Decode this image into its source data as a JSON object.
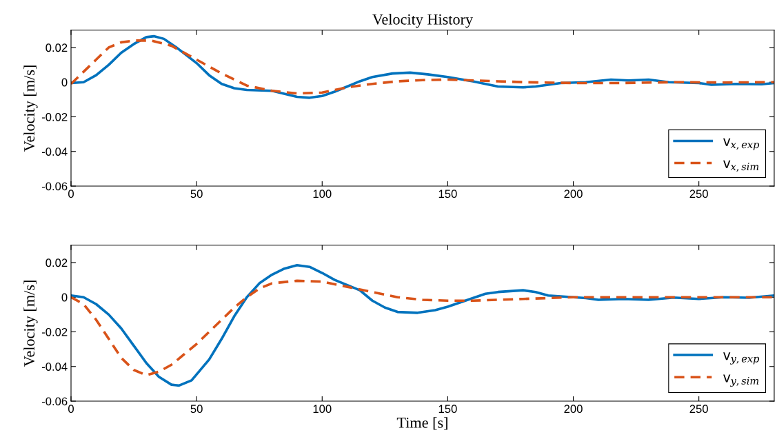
{
  "chart_data": [
    {
      "type": "line",
      "title": "Velocity History",
      "ylabel": "Velocity [m/s]",
      "xlim": [
        0,
        280
      ],
      "xticks": [
        0,
        50,
        100,
        150,
        200,
        250
      ],
      "ylim": [
        -0.06,
        0.03
      ],
      "yticks": [
        -0.06,
        -0.04,
        -0.02,
        0,
        0.02
      ],
      "grid": false,
      "legend": "lower right",
      "marker": "none",
      "series": [
        {
          "name": "v$_{x,exp}$",
          "color": "#0072bd",
          "line_style": "solid",
          "x": [
            0,
            5,
            10,
            15,
            20,
            25,
            30,
            33,
            37,
            42,
            50,
            55,
            60,
            65,
            70,
            80,
            90,
            95,
            100,
            105,
            110,
            115,
            120,
            128,
            135,
            142,
            150,
            160,
            170,
            180,
            185,
            195,
            205,
            215,
            222,
            230,
            238,
            250,
            255,
            265,
            275,
            280
          ],
          "values": [
            -0.0005,
            0.0,
            0.004,
            0.01,
            0.017,
            0.022,
            0.026,
            0.0265,
            0.025,
            0.02,
            0.011,
            0.004,
            -0.001,
            -0.0035,
            -0.0045,
            -0.005,
            -0.0085,
            -0.009,
            -0.008,
            -0.0055,
            -0.0025,
            0.0005,
            0.003,
            0.005,
            0.0055,
            0.0045,
            0.003,
            0.0005,
            -0.0025,
            -0.003,
            -0.0025,
            -0.0005,
            0.0,
            0.0015,
            0.001,
            0.0015,
            0.0,
            -0.0005,
            -0.0015,
            -0.001,
            -0.0012,
            -0.0005
          ]
        },
        {
          "name": "v$_{x,sim}$",
          "color": "#d95319",
          "line_style": "dashed",
          "x": [
            0,
            5,
            10,
            15,
            20,
            25,
            32,
            40,
            50,
            60,
            70,
            80,
            90,
            100,
            110,
            120,
            130,
            140,
            150,
            160,
            170,
            180,
            200,
            220,
            240,
            260,
            280
          ],
          "values": [
            -0.001,
            0.006,
            0.013,
            0.02,
            0.023,
            0.024,
            0.024,
            0.021,
            0.013,
            0.005,
            -0.002,
            -0.005,
            -0.0065,
            -0.006,
            -0.003,
            -0.001,
            0.0005,
            0.0012,
            0.0015,
            0.001,
            0.0005,
            0.0,
            -0.0005,
            -0.0005,
            0.0,
            -0.0002,
            0.0
          ]
        }
      ]
    },
    {
      "type": "line",
      "xlabel": "Time [s]",
      "ylabel": "Velocity [m/s]",
      "xlim": [
        0,
        280
      ],
      "xticks": [
        0,
        50,
        100,
        150,
        200,
        250
      ],
      "ylim": [
        -0.06,
        0.03
      ],
      "yticks": [
        -0.06,
        -0.04,
        -0.02,
        0,
        0.02
      ],
      "grid": false,
      "legend": "lower right",
      "marker": "none",
      "series": [
        {
          "name": "v$_{y,exp}$",
          "color": "#0072bd",
          "line_style": "solid",
          "x": [
            0,
            5,
            10,
            15,
            20,
            25,
            30,
            35,
            40,
            43,
            48,
            55,
            60,
            65,
            70,
            75,
            80,
            85,
            90,
            95,
            100,
            105,
            110,
            115,
            120,
            125,
            130,
            138,
            145,
            150,
            155,
            160,
            165,
            170,
            180,
            185,
            190,
            200,
            205,
            210,
            220,
            230,
            240,
            250,
            260,
            270,
            280
          ],
          "values": [
            0.001,
            0.0,
            -0.004,
            -0.01,
            -0.018,
            -0.028,
            -0.038,
            -0.046,
            -0.0505,
            -0.051,
            -0.048,
            -0.036,
            -0.024,
            -0.011,
            0.0,
            0.008,
            0.013,
            0.0165,
            0.0185,
            0.0175,
            0.014,
            0.01,
            0.007,
            0.004,
            -0.002,
            -0.006,
            -0.0085,
            -0.009,
            -0.0075,
            -0.0055,
            -0.003,
            -0.0005,
            0.002,
            0.003,
            0.004,
            0.003,
            0.001,
            0.0,
            -0.0005,
            -0.0015,
            -0.001,
            -0.0015,
            -0.0002,
            -0.001,
            0.0,
            -0.0003,
            0.001
          ]
        },
        {
          "name": "v$_{y,sim}$",
          "color": "#d95319",
          "line_style": "dashed",
          "x": [
            0,
            5,
            10,
            15,
            20,
            25,
            30,
            35,
            40,
            45,
            50,
            55,
            60,
            65,
            70,
            75,
            80,
            90,
            100,
            110,
            120,
            130,
            140,
            150,
            160,
            170,
            180,
            190,
            200,
            220,
            240,
            260,
            280
          ],
          "values": [
            0.0,
            -0.004,
            -0.013,
            -0.024,
            -0.035,
            -0.042,
            -0.045,
            -0.043,
            -0.039,
            -0.033,
            -0.027,
            -0.02,
            -0.013,
            -0.006,
            0.0,
            0.005,
            0.008,
            0.0095,
            0.009,
            0.006,
            0.003,
            0.0,
            -0.0015,
            -0.002,
            -0.002,
            -0.0015,
            -0.001,
            -0.0005,
            0.0,
            0.0,
            0.0,
            0.0,
            0.0
          ]
        }
      ]
    }
  ]
}
